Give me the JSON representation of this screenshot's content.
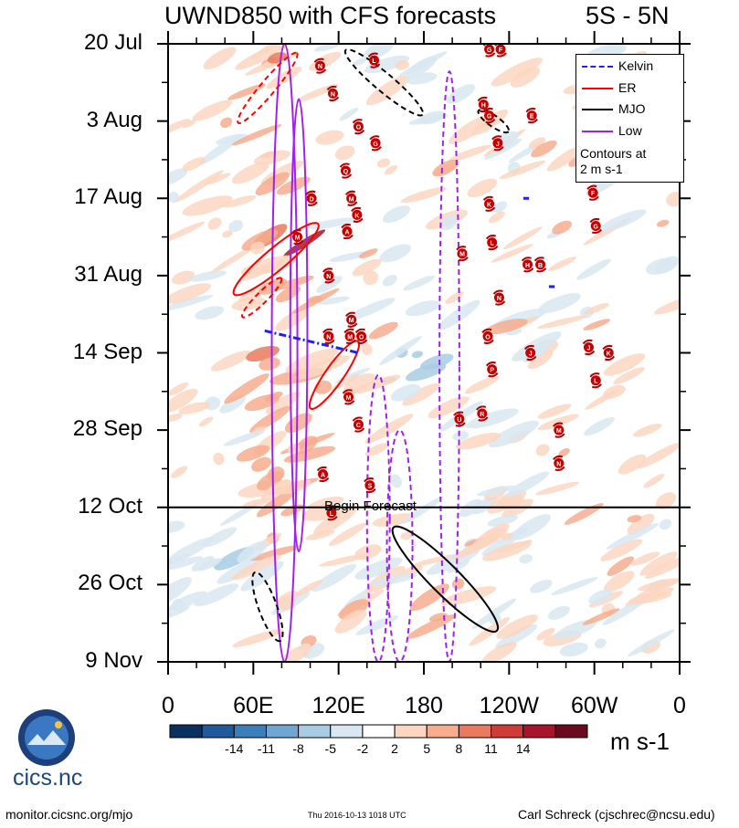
{
  "header": {
    "title": "UWND850 with CFS forecasts",
    "region": "5S - 5N"
  },
  "chart_data": {
    "type": "heatmap",
    "title": "UWND850 with CFS forecasts",
    "subtitle": "5S - 5N",
    "xlabel": "",
    "ylabel": "",
    "x_ticks": [
      "0",
      "60E",
      "120E",
      "180",
      "120W",
      "60W",
      "0"
    ],
    "x_tick_values": [
      0,
      60,
      120,
      180,
      240,
      300,
      360
    ],
    "xlim": [
      0,
      360
    ],
    "y_ticks": [
      "20 Jul",
      "3 Aug",
      "17 Aug",
      "31 Aug",
      "14 Sep",
      "28 Sep",
      "12 Oct",
      "26 Oct",
      "9 Nov"
    ],
    "y_tick_days": [
      0,
      14,
      28,
      42,
      56,
      70,
      84,
      98,
      112
    ],
    "ylim_days": [
      0,
      112
    ],
    "forecast_start_day": 84,
    "forecast_label": "Begin Forecast",
    "colorbar": {
      "levels": [
        "-14",
        "-11",
        "-8",
        "-5",
        "-2",
        "2",
        "5",
        "8",
        "11",
        "14"
      ],
      "colors": [
        "#0b2f5e",
        "#1f5a9c",
        "#3b7fba",
        "#6fa7d2",
        "#a8cce4",
        "#d8e7f1",
        "#ffffff",
        "#fcd6c1",
        "#f6ad8e",
        "#e97a5d",
        "#cf3b37",
        "#a8152a",
        "#6b0a1e"
      ],
      "units": "m s-1"
    },
    "legend": [
      {
        "name": "Kelvin",
        "color": "#1e1eff",
        "style": "dash-dot"
      },
      {
        "name": "ER",
        "color": "#ff0000",
        "style": "solid"
      },
      {
        "name": "MJO",
        "color": "#000000",
        "style": "solid"
      },
      {
        "name": "Low",
        "color": "#a020f0",
        "style": "solid"
      }
    ],
    "legend_note": [
      "Contours at",
      "2 m s-1"
    ],
    "filters": {
      "Low": [
        {
          "lon": 82,
          "day0": 0,
          "day1": 112,
          "halfwidth": 9,
          "sign": "pos"
        },
        {
          "lon": 92,
          "day0": 10,
          "day1": 92,
          "halfwidth": 6,
          "sign": "pos"
        },
        {
          "lon": 148,
          "day0": 60,
          "day1": 112,
          "halfwidth": 8,
          "sign": "neg"
        },
        {
          "lon": 163,
          "day0": 70,
          "day1": 112,
          "halfwidth": 9,
          "sign": "neg"
        },
        {
          "lon": 198,
          "day0": 5,
          "day1": 112,
          "halfwidth": 7,
          "sign": "neg"
        }
      ],
      "ER": [
        {
          "lon": 76,
          "day": 39,
          "len": 60,
          "wid": 12,
          "angle": -40,
          "sign": "pos"
        },
        {
          "lon": 117,
          "day": 60,
          "len": 45,
          "wid": 10,
          "angle": -55,
          "sign": "pos"
        },
        {
          "lon": 70,
          "day": 8,
          "len": 50,
          "wid": 8,
          "angle": -50,
          "sign": "neg"
        },
        {
          "lon": 66,
          "day": 46,
          "len": 30,
          "wid": 6,
          "angle": -45,
          "sign": "neg"
        }
      ],
      "MJO": [
        {
          "lon": 195,
          "day": 97,
          "len": 80,
          "wid": 16,
          "angle": 45,
          "sign": "pos"
        },
        {
          "lon": 70,
          "day": 102,
          "len": 40,
          "wid": 10,
          "angle": 70,
          "sign": "neg"
        },
        {
          "lon": 152,
          "day": 7,
          "len": 55,
          "wid": 10,
          "angle": 40,
          "sign": "neg"
        },
        {
          "lon": 229,
          "day": 14,
          "len": 20,
          "wid": 6,
          "angle": 35,
          "sign": "neg"
        }
      ],
      "Kelvin": [
        {
          "lon0": 68,
          "day0": 52,
          "lon1": 134,
          "day1": 56
        },
        {
          "lon0": 250,
          "day0": 28,
          "lon1": 254,
          "day1": 28
        },
        {
          "lon0": 268,
          "day0": 44,
          "lon1": 272,
          "day1": 44
        }
      ]
    },
    "storms": [
      {
        "id": "N",
        "lon": 107,
        "day": 4
      },
      {
        "id": "L",
        "lon": 145,
        "day": 3
      },
      {
        "id": "N",
        "lon": 116,
        "day": 9
      },
      {
        "id": "O",
        "lon": 134,
        "day": 15
      },
      {
        "id": "G",
        "lon": 146,
        "day": 18
      },
      {
        "id": "Q",
        "lon": 125,
        "day": 23
      },
      {
        "id": "D",
        "lon": 101,
        "day": 28
      },
      {
        "id": "M",
        "lon": 129,
        "day": 28
      },
      {
        "id": "K",
        "lon": 133,
        "day": 31
      },
      {
        "id": "A",
        "lon": 126,
        "day": 34
      },
      {
        "id": "M",
        "lon": 91,
        "day": 35
      },
      {
        "id": "N",
        "lon": 113,
        "day": 42
      },
      {
        "id": "M",
        "lon": 129,
        "day": 50
      },
      {
        "id": "M",
        "lon": 128,
        "day": 53
      },
      {
        "id": "O",
        "lon": 136,
        "day": 53
      },
      {
        "id": "N",
        "lon": 113,
        "day": 53
      },
      {
        "id": "M",
        "lon": 127,
        "day": 64
      },
      {
        "id": "C",
        "lon": 134,
        "day": 69
      },
      {
        "id": "A",
        "lon": 109,
        "day": 78
      },
      {
        "id": "S",
        "lon": 142,
        "day": 80
      },
      {
        "id": "L",
        "lon": 115,
        "day": 85
      },
      {
        "id": "G",
        "lon": 226,
        "day": 1
      },
      {
        "id": "F",
        "lon": 234,
        "day": 1
      },
      {
        "id": "H",
        "lon": 222,
        "day": 11
      },
      {
        "id": "G",
        "lon": 226,
        "day": 13
      },
      {
        "id": "J",
        "lon": 232,
        "day": 18
      },
      {
        "id": "K",
        "lon": 226,
        "day": 29
      },
      {
        "id": "L",
        "lon": 228,
        "day": 36
      },
      {
        "id": "M",
        "lon": 207,
        "day": 38
      },
      {
        "id": "H",
        "lon": 253,
        "day": 40
      },
      {
        "id": "B",
        "lon": 262,
        "day": 40
      },
      {
        "id": "N",
        "lon": 233,
        "day": 46
      },
      {
        "id": "O",
        "lon": 225,
        "day": 53
      },
      {
        "id": "P",
        "lon": 228,
        "day": 59
      },
      {
        "id": "J",
        "lon": 255,
        "day": 56
      },
      {
        "id": "U",
        "lon": 205,
        "day": 68
      },
      {
        "id": "R",
        "lon": 221,
        "day": 67
      },
      {
        "id": "E",
        "lon": 256,
        "day": 13
      },
      {
        "id": "F",
        "lon": 299,
        "day": 27
      },
      {
        "id": "G",
        "lon": 301,
        "day": 33
      },
      {
        "id": "J",
        "lon": 296,
        "day": 55
      },
      {
        "id": "K",
        "lon": 310,
        "day": 56
      },
      {
        "id": "L",
        "lon": 301,
        "day": 61
      },
      {
        "id": "M",
        "lon": 275,
        "day": 70
      },
      {
        "id": "N",
        "lon": 275,
        "day": 76
      }
    ],
    "field_bands": [
      {
        "lon0": 55,
        "lon1": 110,
        "day0": 0,
        "day1": 90,
        "value": 6
      },
      {
        "lon0": 82,
        "lon1": 98,
        "day0": 30,
        "day1": 40,
        "value": 14
      },
      {
        "lon0": 170,
        "lon1": 220,
        "day0": 95,
        "day1": 108,
        "value": 6
      },
      {
        "lon0": 0,
        "lon1": 60,
        "day0": 84,
        "day1": 112,
        "value": -3
      },
      {
        "lon0": 150,
        "lon1": 200,
        "day0": 52,
        "day1": 62,
        "value": -6
      }
    ]
  },
  "footer": {
    "logo_text": "cics.nc",
    "url": "monitor.cicsnc.org/mjo",
    "timestamp": "Thu 2016-10-13 1018 UTC",
    "author": "Carl Schreck (cjschrec@ncsu.edu)"
  }
}
